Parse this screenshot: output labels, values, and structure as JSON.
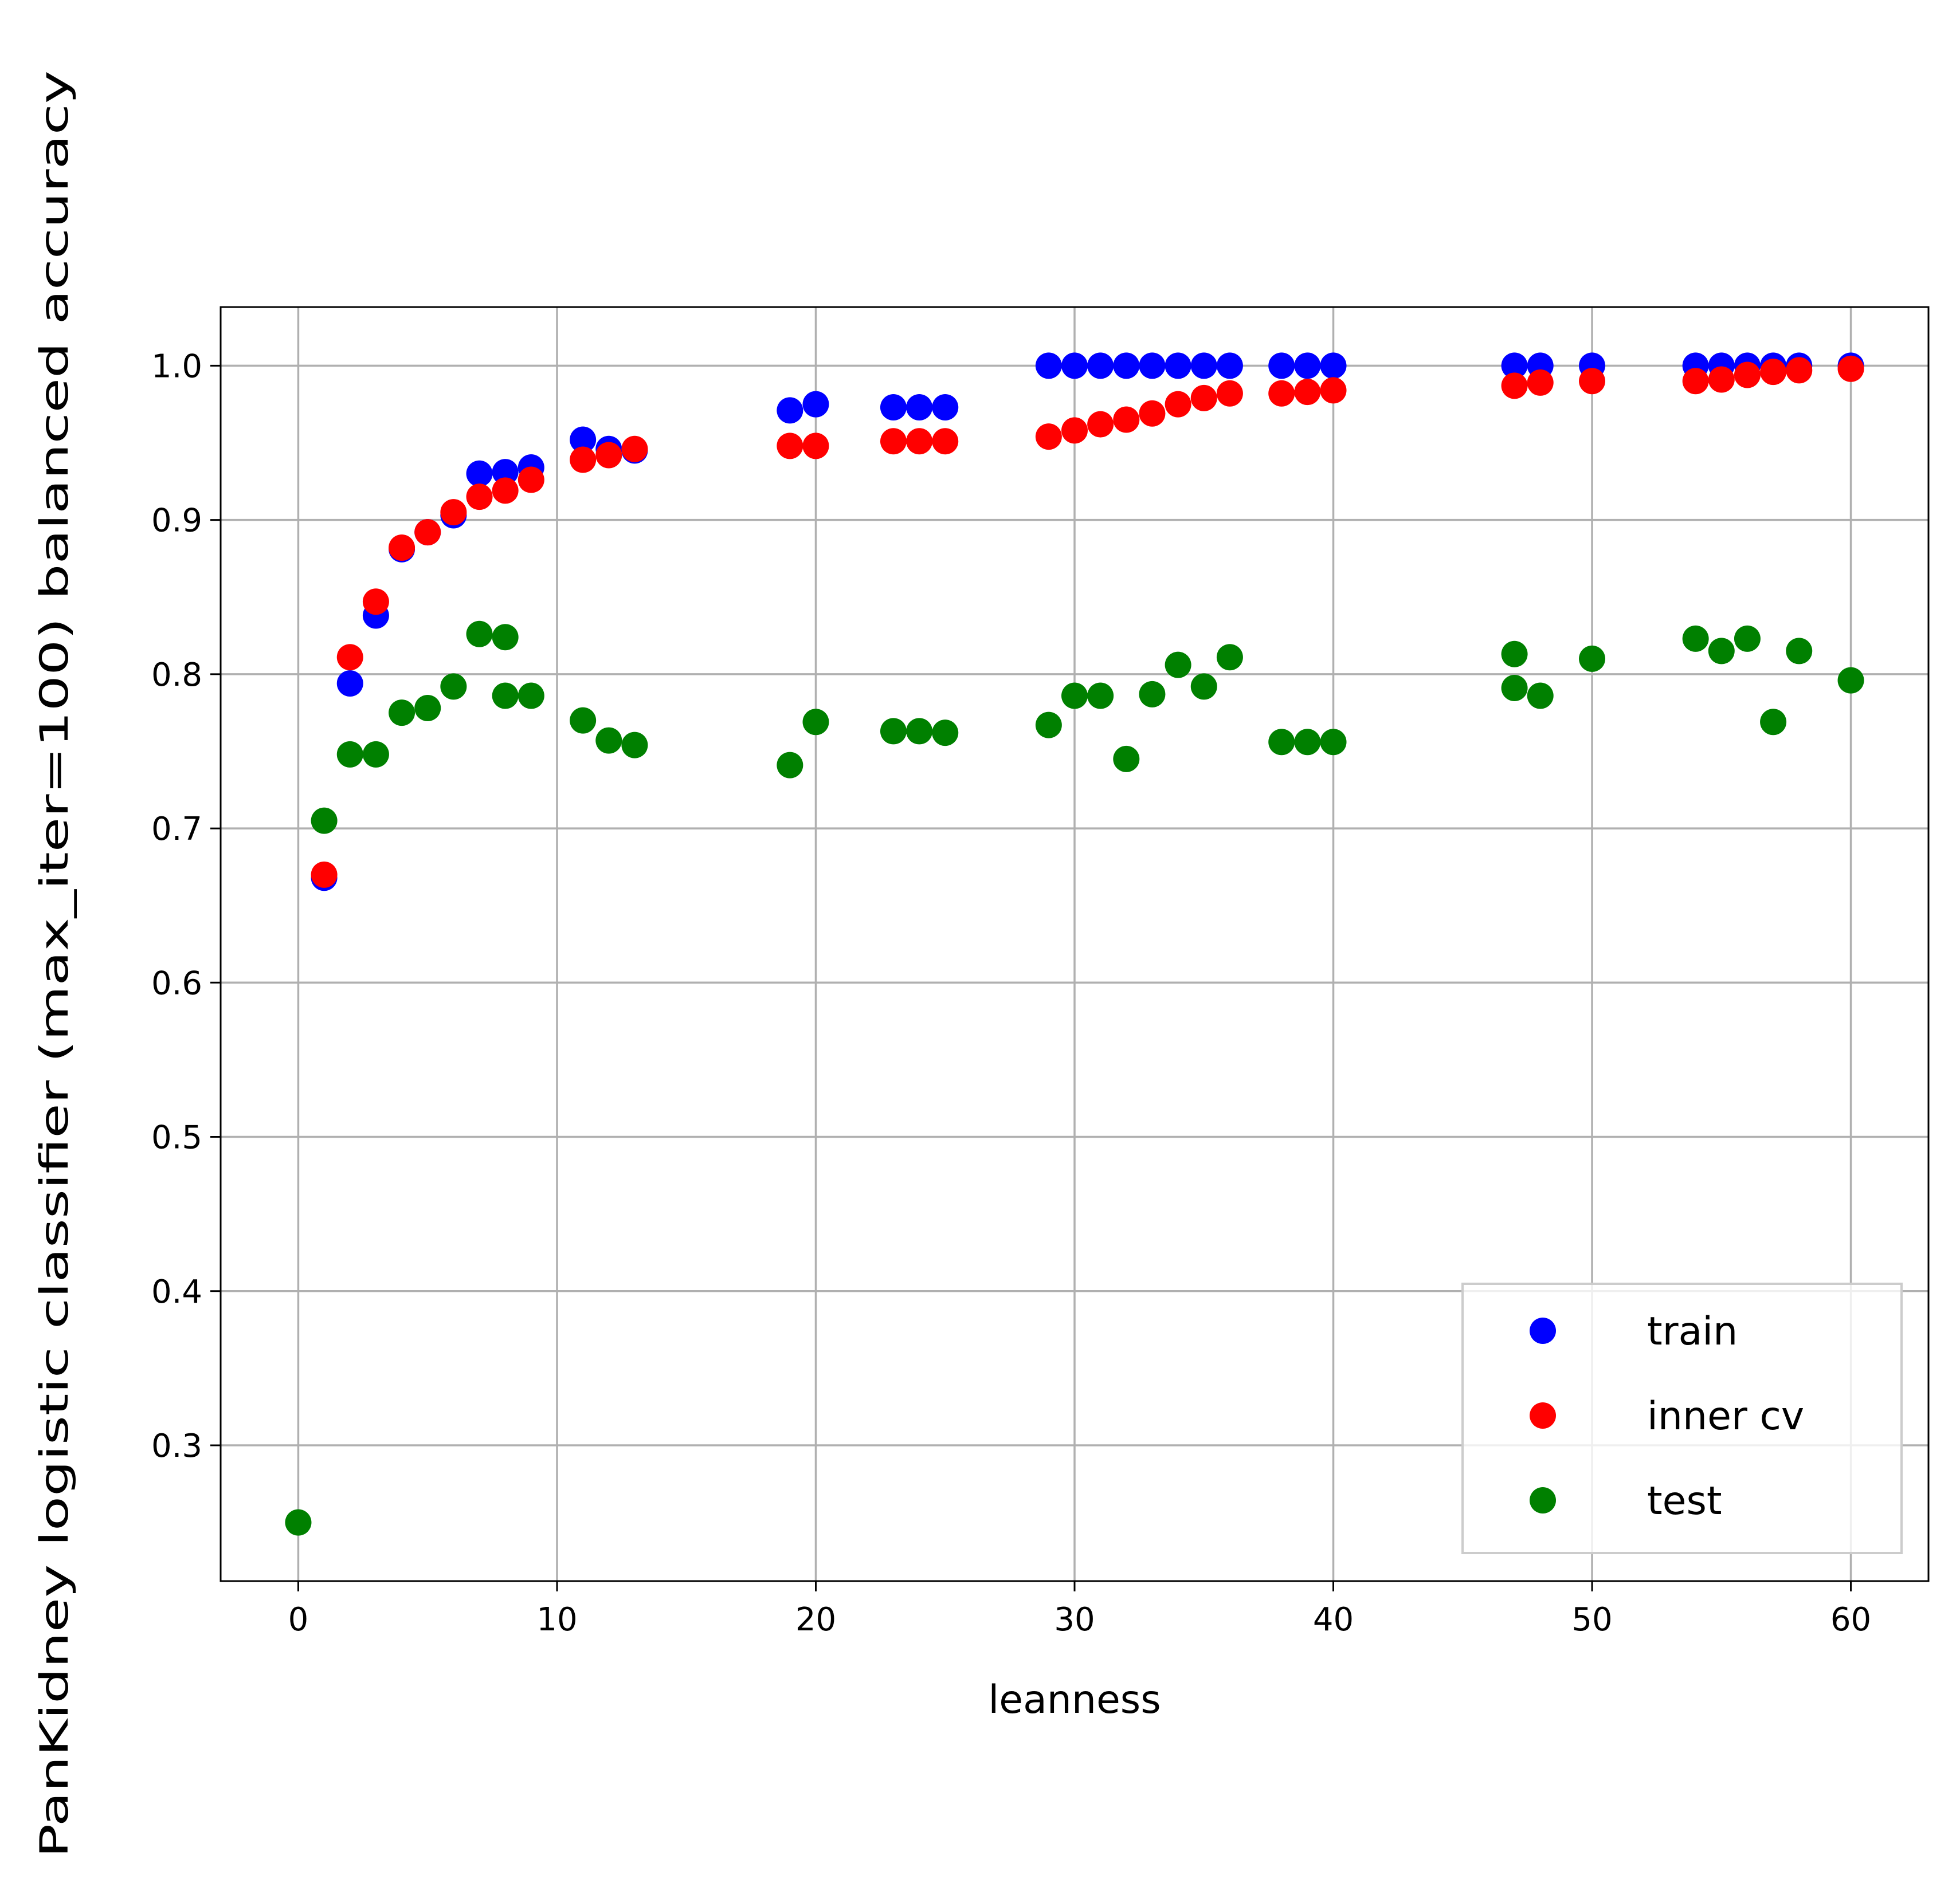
{
  "chart_data": {
    "type": "scatter",
    "title": "",
    "xlabel": "leanness",
    "ylabel": "PanKidney logistic classifier (max_iter=100) balanced accuracy",
    "xlim": [
      -3,
      63
    ],
    "ylim": [
      0.212,
      1.038
    ],
    "xticks": [
      0,
      10,
      20,
      30,
      40,
      50,
      60
    ],
    "yticks": [
      0.3,
      0.4,
      0.5,
      0.6,
      0.7,
      0.8,
      0.9,
      1.0
    ],
    "grid": true,
    "legend_position": "lower-right",
    "series": [
      {
        "name": "train",
        "color": "#0000ff",
        "points": [
          [
            1,
            0.668
          ],
          [
            2,
            0.794
          ],
          [
            3,
            0.838
          ],
          [
            4,
            0.881
          ],
          [
            5,
            0.892
          ],
          [
            6,
            0.903
          ],
          [
            7,
            0.93
          ],
          [
            8,
            0.931
          ],
          [
            9,
            0.934
          ],
          [
            11,
            0.952
          ],
          [
            12,
            0.946
          ],
          [
            13,
            0.945
          ],
          [
            19,
            0.971
          ],
          [
            20,
            0.975
          ],
          [
            23,
            0.973
          ],
          [
            24,
            0.973
          ],
          [
            25,
            0.973
          ],
          [
            29,
            1.0
          ],
          [
            30,
            1.0
          ],
          [
            31,
            1.0
          ],
          [
            32,
            1.0
          ],
          [
            33,
            1.0
          ],
          [
            34,
            1.0
          ],
          [
            35,
            1.0
          ],
          [
            36,
            1.0
          ],
          [
            38,
            1.0
          ],
          [
            39,
            1.0
          ],
          [
            40,
            1.0
          ],
          [
            47,
            1.0
          ],
          [
            48,
            1.0
          ],
          [
            50,
            1.0
          ],
          [
            54,
            1.0
          ],
          [
            55,
            1.0
          ],
          [
            56,
            1.0
          ],
          [
            57,
            1.0
          ],
          [
            58,
            1.0
          ],
          [
            60,
            1.0
          ]
        ]
      },
      {
        "name": "inner cv",
        "color": "#ff0000",
        "points": [
          [
            1,
            0.67
          ],
          [
            2,
            0.811
          ],
          [
            3,
            0.847
          ],
          [
            4,
            0.882
          ],
          [
            5,
            0.892
          ],
          [
            6,
            0.905
          ],
          [
            7,
            0.915
          ],
          [
            8,
            0.919
          ],
          [
            9,
            0.926
          ],
          [
            11,
            0.939
          ],
          [
            12,
            0.942
          ],
          [
            13,
            0.946
          ],
          [
            19,
            0.948
          ],
          [
            20,
            0.948
          ],
          [
            23,
            0.951
          ],
          [
            24,
            0.951
          ],
          [
            25,
            0.951
          ],
          [
            29,
            0.954
          ],
          [
            30,
            0.958
          ],
          [
            31,
            0.962
          ],
          [
            32,
            0.965
          ],
          [
            33,
            0.969
          ],
          [
            34,
            0.975
          ],
          [
            35,
            0.979
          ],
          [
            36,
            0.982
          ],
          [
            38,
            0.982
          ],
          [
            39,
            0.983
          ],
          [
            40,
            0.984
          ],
          [
            47,
            0.987
          ],
          [
            48,
            0.989
          ],
          [
            50,
            0.99
          ],
          [
            54,
            0.99
          ],
          [
            55,
            0.991
          ],
          [
            56,
            0.994
          ],
          [
            57,
            0.996
          ],
          [
            58,
            0.997
          ],
          [
            60,
            0.998
          ]
        ]
      },
      {
        "name": "test",
        "color": "#008000",
        "points": [
          [
            0,
            0.25
          ],
          [
            1,
            0.705
          ],
          [
            2,
            0.748
          ],
          [
            3,
            0.748
          ],
          [
            4,
            0.775
          ],
          [
            5,
            0.778
          ],
          [
            6,
            0.792
          ],
          [
            7,
            0.826
          ],
          [
            8,
            0.824
          ],
          [
            8,
            0.786
          ],
          [
            9,
            0.786
          ],
          [
            11,
            0.77
          ],
          [
            12,
            0.757
          ],
          [
            13,
            0.754
          ],
          [
            19,
            0.741
          ],
          [
            20,
            0.769
          ],
          [
            23,
            0.763
          ],
          [
            24,
            0.763
          ],
          [
            25,
            0.762
          ],
          [
            29,
            0.767
          ],
          [
            30,
            0.786
          ],
          [
            31,
            0.786
          ],
          [
            32,
            0.745
          ],
          [
            33,
            0.787
          ],
          [
            34,
            0.806
          ],
          [
            35,
            0.792
          ],
          [
            36,
            0.811
          ],
          [
            38,
            0.756
          ],
          [
            39,
            0.756
          ],
          [
            40,
            0.756
          ],
          [
            47,
            0.813
          ],
          [
            47,
            0.791
          ],
          [
            48,
            0.786
          ],
          [
            50,
            0.81
          ],
          [
            54,
            0.823
          ],
          [
            55,
            0.815
          ],
          [
            56,
            0.823
          ],
          [
            57,
            0.769
          ],
          [
            58,
            0.815
          ],
          [
            60,
            0.796
          ]
        ]
      }
    ]
  }
}
